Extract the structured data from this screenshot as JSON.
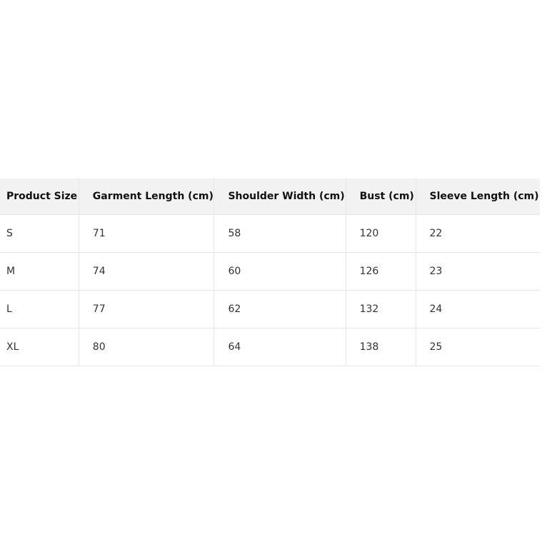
{
  "table": {
    "headers": [
      "Product Size",
      "Garment Length (cm)",
      "Shoulder Width (cm)",
      "Bust (cm)",
      "Sleeve Length (cm)"
    ],
    "rows": [
      [
        "S",
        "71",
        "58",
        "120",
        "22"
      ],
      [
        "M",
        "74",
        "60",
        "126",
        "23"
      ],
      [
        "L",
        "77",
        "62",
        "132",
        "24"
      ],
      [
        "XL",
        "80",
        "64",
        "138",
        "25"
      ]
    ]
  }
}
